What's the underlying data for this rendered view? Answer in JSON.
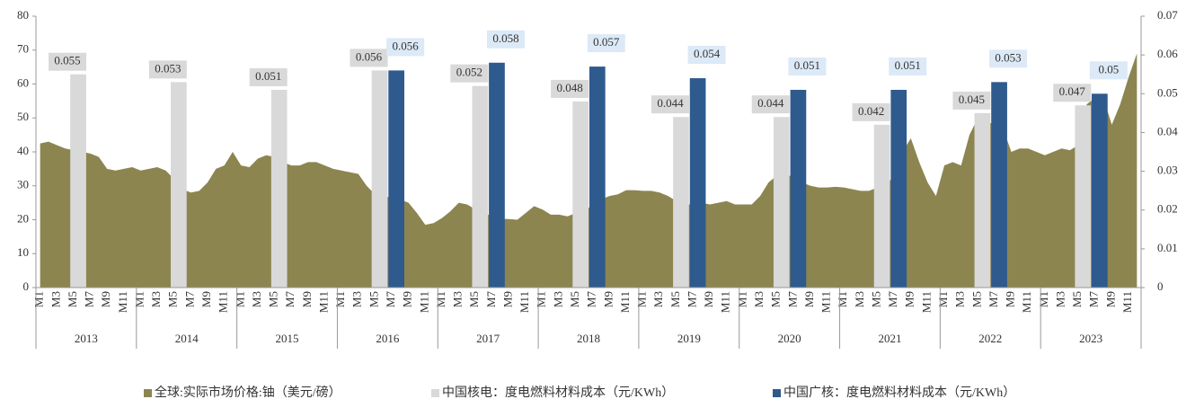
{
  "chart_data": {
    "type": "bar-area",
    "categories": [
      "M1",
      null,
      "M3",
      null,
      "M5",
      null,
      "M7",
      null,
      "M9",
      null,
      "M11",
      null,
      "M1",
      null,
      "M3",
      null,
      "M5",
      null,
      "M7",
      null,
      "M9",
      null,
      "M11",
      null,
      "M1",
      null,
      "M3",
      null,
      "M5",
      null,
      "M7",
      null,
      "M9",
      null,
      "M11",
      null,
      "M1",
      null,
      "M3",
      null,
      "M5",
      null,
      "M7",
      null,
      "M9",
      null,
      "M11",
      null,
      "M1",
      null,
      "M3",
      null,
      "M5",
      null,
      "M7",
      null,
      "M9",
      null,
      "M11",
      null,
      "M1",
      null,
      "M3",
      null,
      "M5",
      null,
      "M7",
      null,
      "M9",
      null,
      "M11",
      null,
      "M1",
      null,
      "M3",
      null,
      "M5",
      null,
      "M7",
      null,
      "M9",
      null,
      "M11",
      null,
      "M1",
      null,
      "M3",
      null,
      "M5",
      null,
      "M7",
      null,
      "M9",
      null,
      "M11",
      null,
      "M1",
      null,
      "M3",
      null,
      "M5",
      null,
      "M7",
      null,
      "M9",
      null,
      "M11",
      null,
      "M1",
      null,
      "M3",
      null,
      "M5",
      null,
      "M7",
      null,
      "M9",
      null,
      "M11",
      null,
      "M1",
      null,
      "M3",
      null,
      "M5",
      null,
      "M7",
      null,
      "M9",
      null,
      "M11",
      null
    ],
    "years": [
      "2013",
      "2014",
      "2015",
      "2016",
      "2017",
      "2018",
      "2019",
      "2020",
      "2021",
      "2022",
      "2023"
    ],
    "ylim": [
      0,
      80
    ],
    "yticks": [
      0,
      10,
      20,
      30,
      40,
      50,
      60,
      70,
      80
    ],
    "y2lim": [
      0,
      0.07
    ],
    "y2ticks": [
      0,
      0.01,
      0.02,
      0.03,
      0.04,
      0.05,
      0.06,
      0.07
    ],
    "series": [
      {
        "name": "全球:实际市场价格:铀（美元/磅）",
        "color": "#8c8550",
        "kind": "area",
        "values": [
          42.5,
          43,
          42,
          41,
          40.5,
          40,
          39.5,
          38.5,
          35,
          34.5,
          35,
          35.5,
          34.5,
          35,
          35.5,
          34.5,
          32,
          29,
          28,
          28.5,
          31,
          35,
          36,
          40,
          36,
          35.5,
          38,
          39,
          38.5,
          37,
          36,
          36,
          37,
          37,
          36,
          35,
          34.5,
          34,
          33.5,
          30,
          27.5,
          27,
          26.5,
          26,
          25,
          22,
          18.5,
          19,
          20.5,
          22.5,
          25,
          24.5,
          23,
          22,
          21,
          20.3,
          20.2,
          20,
          22,
          24,
          23,
          21.5,
          21.5,
          21,
          22,
          23,
          24,
          26,
          27,
          27.5,
          28.7,
          28.7,
          28.5,
          28.5,
          28,
          27,
          25.5,
          24.5,
          24.5,
          25,
          24.5,
          25,
          25.5,
          24.5,
          24.5,
          24.5,
          27,
          31,
          33,
          33.5,
          32.5,
          31,
          30,
          29.5,
          29.5,
          29.7,
          29.5,
          29,
          28.5,
          28.5,
          29.5,
          30,
          33,
          40,
          44,
          37,
          31,
          27,
          36,
          37,
          36,
          45,
          50,
          49,
          48,
          47,
          40,
          41,
          41,
          40,
          39,
          40,
          41,
          40.5,
          42,
          54,
          56,
          56,
          48,
          54,
          62,
          69
        ]
      },
      {
        "name": "中国核电：度电燃料材料成本（元/KWh）",
        "color": "#d9d9d9",
        "kind": "bar",
        "axis": "y2",
        "values": [
          null,
          null,
          null,
          null,
          0.055,
          null,
          null,
          null,
          null,
          null,
          null,
          null,
          null,
          null,
          null,
          null,
          0.053,
          null,
          null,
          null,
          null,
          null,
          null,
          null,
          null,
          null,
          null,
          null,
          0.051,
          null,
          null,
          null,
          null,
          null,
          null,
          null,
          null,
          null,
          null,
          null,
          0.056,
          null,
          null,
          null,
          null,
          null,
          null,
          null,
          null,
          null,
          null,
          null,
          0.052,
          null,
          null,
          null,
          null,
          null,
          null,
          null,
          null,
          null,
          null,
          null,
          0.048,
          null,
          null,
          null,
          null,
          null,
          null,
          null,
          null,
          null,
          null,
          null,
          0.044,
          null,
          null,
          null,
          null,
          null,
          null,
          null,
          null,
          null,
          null,
          null,
          0.044,
          null,
          null,
          null,
          null,
          null,
          null,
          null,
          null,
          null,
          null,
          null,
          0.042,
          null,
          null,
          null,
          null,
          null,
          null,
          null,
          null,
          null,
          null,
          null,
          0.045,
          null,
          null,
          null,
          null,
          null,
          null,
          null,
          null,
          null,
          null,
          null,
          0.047,
          null,
          null,
          null,
          null,
          null,
          null,
          null
        ]
      },
      {
        "name": "中国广核：度电燃料材料成本（元/KWh）",
        "color": "#2f5a8e",
        "kind": "bar",
        "axis": "y2",
        "values": [
          null,
          null,
          null,
          null,
          null,
          null,
          null,
          null,
          null,
          null,
          null,
          null,
          null,
          null,
          null,
          null,
          null,
          null,
          null,
          null,
          null,
          null,
          null,
          null,
          null,
          null,
          null,
          null,
          null,
          null,
          null,
          null,
          null,
          null,
          null,
          null,
          null,
          null,
          null,
          null,
          null,
          null,
          0.056,
          null,
          null,
          null,
          null,
          null,
          null,
          null,
          null,
          null,
          null,
          null,
          0.058,
          null,
          null,
          null,
          null,
          null,
          null,
          null,
          null,
          null,
          null,
          null,
          0.057,
          null,
          null,
          null,
          null,
          null,
          null,
          null,
          null,
          null,
          null,
          null,
          0.054,
          null,
          null,
          null,
          null,
          null,
          null,
          null,
          null,
          null,
          null,
          null,
          0.051,
          null,
          null,
          null,
          null,
          null,
          null,
          null,
          null,
          null,
          null,
          null,
          0.051,
          null,
          null,
          null,
          null,
          null,
          null,
          null,
          null,
          null,
          null,
          null,
          0.053,
          null,
          null,
          null,
          null,
          null,
          null,
          null,
          null,
          null,
          null,
          null,
          0.05,
          null,
          null,
          null,
          null,
          null
        ]
      }
    ]
  }
}
